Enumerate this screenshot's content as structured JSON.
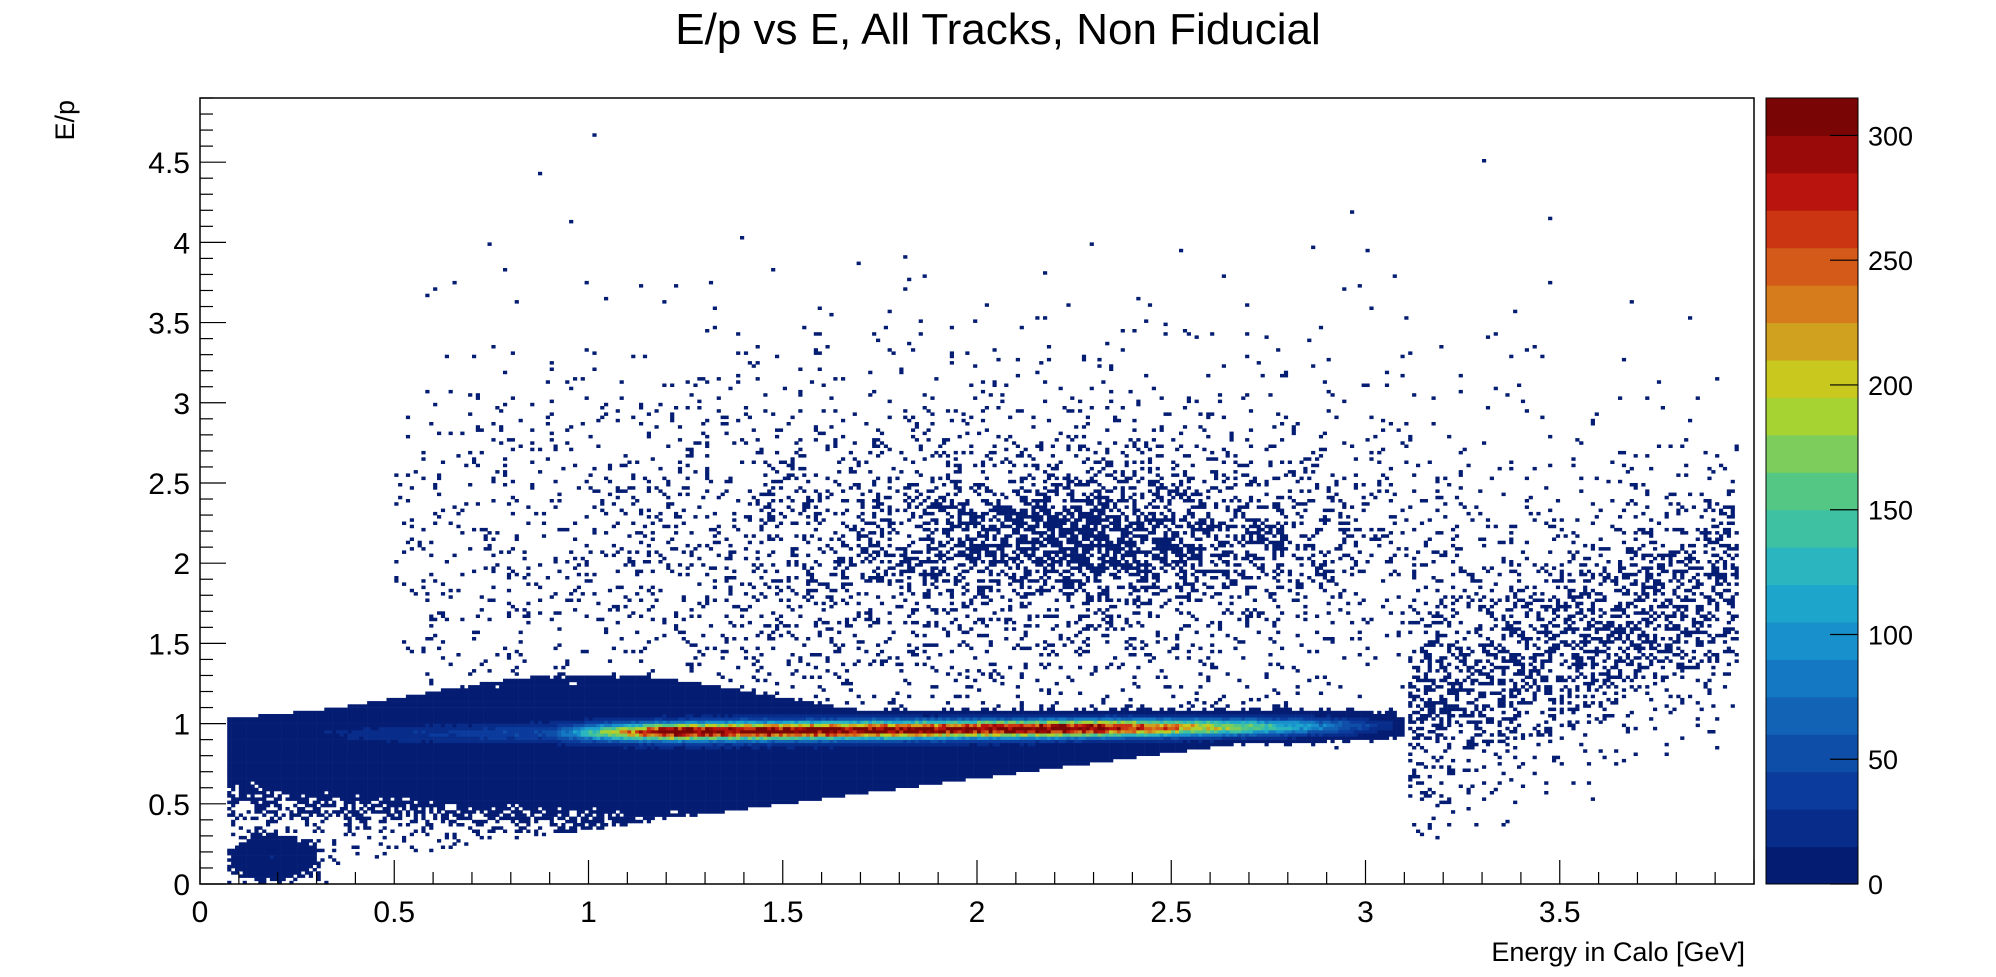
{
  "chart_data": {
    "type": "heatmap",
    "title": "E/p vs E, All Tracks, Non Fiducial",
    "xlabel": "Energy in Calo [GeV]",
    "ylabel": "E/p",
    "xlim": [
      0,
      4
    ],
    "ylim": [
      0,
      4.9
    ],
    "grid": false,
    "x_ticks": [
      "0",
      "0.5",
      "1",
      "1.5",
      "2",
      "2.5",
      "3",
      "3.5"
    ],
    "y_ticks": [
      "0",
      "0.5",
      "1",
      "1.5",
      "2",
      "2.5",
      "3",
      "3.5",
      "4",
      "4.5"
    ],
    "colorbar": {
      "range": [
        0,
        315
      ],
      "ticks": [
        "0",
        "50",
        "100",
        "150",
        "200",
        "250",
        "300"
      ],
      "colors": [
        "#041d73",
        "#082c8a",
        "#0b3b9c",
        "#0f4ea8",
        "#1263b5",
        "#1479c2",
        "#1890cc",
        "#1ea5cc",
        "#2bb5be",
        "#3ec1a3",
        "#55c785",
        "#7dcd5c",
        "#a7d332",
        "#c8c81f",
        "#d0a11e",
        "#d67c1c",
        "#d35a18",
        "#cc3512",
        "#b9140d",
        "#9a0a08",
        "#7a0505"
      ]
    },
    "density_regions": [
      {
        "name": "core band",
        "x_range": [
          0.2,
          3.2
        ],
        "y_trend": "E/p ≈ 0.95 at peak, rising from 0.1 at E=0.1 to 1.05 at E=3.1",
        "peak_count": 310,
        "peak_x": [
          1.2,
          2.3
        ]
      },
      {
        "name": "low-E/p tail",
        "x_range": [
          0.1,
          3.1
        ],
        "lower_edge": "E/p ≈ 0.32·E"
      },
      {
        "name": "sparse halo",
        "x_range": [
          0.5,
          3.95
        ],
        "y_range": [
          1.1,
          4.7
        ],
        "count": "1-5 per bin"
      }
    ]
  }
}
